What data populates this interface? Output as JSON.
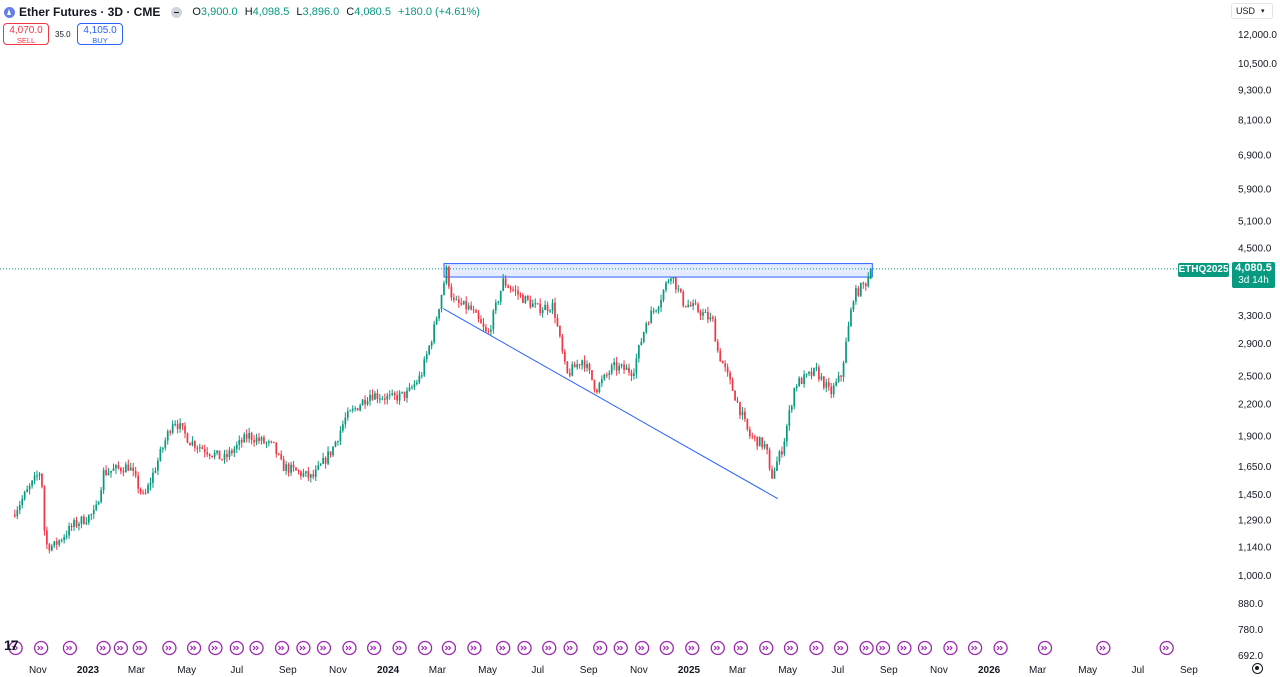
{
  "header": {
    "title": "Ether Futures · 3D · CME",
    "ohlc": [
      {
        "k": "O",
        "v": "3,900.0"
      },
      {
        "k": "H",
        "v": "4,098.5"
      },
      {
        "k": "L",
        "v": "3,896.0"
      },
      {
        "k": "C",
        "v": "4,080.5"
      }
    ],
    "change": "+180.0 (+4.61%)"
  },
  "trade": {
    "sell_price": "4,070.0",
    "sell_label": "SELL",
    "spread": "35.0",
    "buy_price": "4,105.0",
    "buy_label": "BUY"
  },
  "currency": "USD",
  "last_price": {
    "symbol": "ETHQ2025",
    "price": "4,080.5",
    "countdown": "3d 14h"
  },
  "colors": {
    "up": "#089981",
    "down": "#f23645",
    "drawing": "#2962ff",
    "event_marker": "#9c27b0"
  },
  "icons": [
    "event-marker-icon",
    "settings-icon",
    "tradingview-logo-icon"
  ],
  "chart_data": {
    "type": "candlestick",
    "title": "Ether Futures · 3D · CME",
    "y_scale": "log",
    "ylim": [
      692,
      12700
    ],
    "y_ticks": [
      "12,000.0",
      "10,500.0",
      "9,300.0",
      "8,100.0",
      "6,900.0",
      "5,900.0",
      "5,100.0",
      "4,500.0",
      "3,300.0",
      "2,900.0",
      "2,500.0",
      "2,200.0",
      "1,900.0",
      "1,650.0",
      "1,450.0",
      "1,290.0",
      "1,140.0",
      "1,000.0",
      "880.0",
      "780.0",
      "692.0"
    ],
    "x_ticks": [
      {
        "label": "Nov",
        "date": "2022-11-01",
        "bold": false
      },
      {
        "label": "2023",
        "date": "2023-01-01",
        "bold": true
      },
      {
        "label": "Mar",
        "date": "2023-03-01",
        "bold": false
      },
      {
        "label": "May",
        "date": "2023-05-01",
        "bold": false
      },
      {
        "label": "Jul",
        "date": "2023-07-01",
        "bold": false
      },
      {
        "label": "Sep",
        "date": "2023-09-01",
        "bold": false
      },
      {
        "label": "Nov",
        "date": "2023-11-01",
        "bold": false
      },
      {
        "label": "2024",
        "date": "2024-01-01",
        "bold": true
      },
      {
        "label": "Mar",
        "date": "2024-03-01",
        "bold": false
      },
      {
        "label": "May",
        "date": "2024-05-01",
        "bold": false
      },
      {
        "label": "Jul",
        "date": "2024-07-01",
        "bold": false
      },
      {
        "label": "Sep",
        "date": "2024-09-01",
        "bold": false
      },
      {
        "label": "Nov",
        "date": "2024-11-01",
        "bold": false
      },
      {
        "label": "2025",
        "date": "2025-01-01",
        "bold": true
      },
      {
        "label": "Mar",
        "date": "2025-03-01",
        "bold": false
      },
      {
        "label": "May",
        "date": "2025-05-01",
        "bold": false
      },
      {
        "label": "Jul",
        "date": "2025-07-01",
        "bold": false
      },
      {
        "label": "Sep",
        "date": "2025-09-01",
        "bold": false
      },
      {
        "label": "Nov",
        "date": "2025-11-01",
        "bold": false
      },
      {
        "label": "2026",
        "date": "2026-01-01",
        "bold": true
      },
      {
        "label": "Mar",
        "date": "2026-03-01",
        "bold": false
      },
      {
        "label": "May",
        "date": "2026-05-01",
        "bold": false
      },
      {
        "label": "Jul",
        "date": "2026-07-01",
        "bold": false
      },
      {
        "label": "Sep",
        "date": "2026-09-01",
        "bold": false
      }
    ],
    "anchors": [
      {
        "date": "2022-10-01",
        "close": 1320
      },
      {
        "date": "2022-11-05",
        "close": 1620
      },
      {
        "date": "2022-11-10",
        "close": 1150
      },
      {
        "date": "2022-11-20",
        "close": 1140
      },
      {
        "date": "2022-12-15",
        "close": 1260
      },
      {
        "date": "2023-01-10",
        "close": 1330
      },
      {
        "date": "2023-01-20",
        "close": 1600
      },
      {
        "date": "2023-02-20",
        "close": 1650
      },
      {
        "date": "2023-03-10",
        "close": 1420
      },
      {
        "date": "2023-04-01",
        "close": 1780
      },
      {
        "date": "2023-04-15",
        "close": 2050
      },
      {
        "date": "2023-05-05",
        "close": 1850
      },
      {
        "date": "2023-06-15",
        "close": 1700
      },
      {
        "date": "2023-07-15",
        "close": 1900
      },
      {
        "date": "2023-08-15",
        "close": 1800
      },
      {
        "date": "2023-08-25",
        "close": 1650
      },
      {
        "date": "2023-10-01",
        "close": 1560
      },
      {
        "date": "2023-10-25",
        "close": 1780
      },
      {
        "date": "2023-11-10",
        "close": 2050
      },
      {
        "date": "2023-12-10",
        "close": 2300
      },
      {
        "date": "2024-01-05",
        "close": 2250
      },
      {
        "date": "2024-01-25",
        "close": 2300
      },
      {
        "date": "2024-02-10",
        "close": 2500
      },
      {
        "date": "2024-02-25",
        "close": 3050
      },
      {
        "date": "2024-03-12",
        "close": 4050
      },
      {
        "date": "2024-03-20",
        "close": 3500
      },
      {
        "date": "2024-04-10",
        "close": 3400
      },
      {
        "date": "2024-05-01",
        "close": 3000
      },
      {
        "date": "2024-05-20",
        "close": 3850
      },
      {
        "date": "2024-06-10",
        "close": 3600
      },
      {
        "date": "2024-07-01",
        "close": 3400
      },
      {
        "date": "2024-07-20",
        "close": 3450
      },
      {
        "date": "2024-08-05",
        "close": 2500
      },
      {
        "date": "2024-08-25",
        "close": 2700
      },
      {
        "date": "2024-09-10",
        "close": 2350
      },
      {
        "date": "2024-10-01",
        "close": 2600
      },
      {
        "date": "2024-10-25",
        "close": 2550
      },
      {
        "date": "2024-11-10",
        "close": 3200
      },
      {
        "date": "2024-11-25",
        "close": 3500
      },
      {
        "date": "2024-12-10",
        "close": 4000
      },
      {
        "date": "2024-12-25",
        "close": 3500
      },
      {
        "date": "2025-01-15",
        "close": 3350
      },
      {
        "date": "2025-01-30",
        "close": 3200
      },
      {
        "date": "2025-02-05",
        "close": 2800
      },
      {
        "date": "2025-02-25",
        "close": 2300
      },
      {
        "date": "2025-03-15",
        "close": 1900
      },
      {
        "date": "2025-04-05",
        "close": 1800
      },
      {
        "date": "2025-04-10",
        "close": 1550
      },
      {
        "date": "2025-04-25",
        "close": 1800
      },
      {
        "date": "2025-05-10",
        "close": 2400
      },
      {
        "date": "2025-06-05",
        "close": 2550
      },
      {
        "date": "2025-06-22",
        "close": 2300
      },
      {
        "date": "2025-07-05",
        "close": 2500
      },
      {
        "date": "2025-07-20",
        "close": 3600
      },
      {
        "date": "2025-08-05",
        "close": 3850
      },
      {
        "date": "2025-08-10",
        "close": 4080.5
      }
    ],
    "last_candle": {
      "open": 3900.0,
      "high": 4098.5,
      "low": 3896.0,
      "close": 4080.5
    },
    "drawings": {
      "resistance_zone": {
        "start": "2024-03-09",
        "end": "2025-08-12",
        "low": 3930,
        "high": 4180
      },
      "support_line": {
        "start": "2024-03-08",
        "price_start": 3400,
        "end": "2025-04-19",
        "price_end": 1420
      }
    },
    "event_marker_dates": [
      "2022-10-05",
      "2022-11-05",
      "2022-12-10",
      "2023-01-20",
      "2023-02-10",
      "2023-03-05",
      "2023-04-10",
      "2023-05-10",
      "2023-06-05",
      "2023-07-01",
      "2023-07-25",
      "2023-08-25",
      "2023-09-20",
      "2023-10-15",
      "2023-11-15",
      "2023-12-15",
      "2024-01-15",
      "2024-02-15",
      "2024-03-15",
      "2024-04-15",
      "2024-05-20",
      "2024-06-15",
      "2024-07-15",
      "2024-08-10",
      "2024-09-15",
      "2024-10-10",
      "2024-11-05",
      "2024-12-05",
      "2025-01-05",
      "2025-02-05",
      "2025-03-05",
      "2025-04-05",
      "2025-05-05",
      "2025-06-05",
      "2025-07-05",
      "2025-08-05",
      "2025-08-25",
      "2025-09-20",
      "2025-10-15",
      "2025-11-15",
      "2025-12-15",
      "2026-01-15",
      "2026-03-10",
      "2026-05-20",
      "2026-08-05"
    ]
  }
}
